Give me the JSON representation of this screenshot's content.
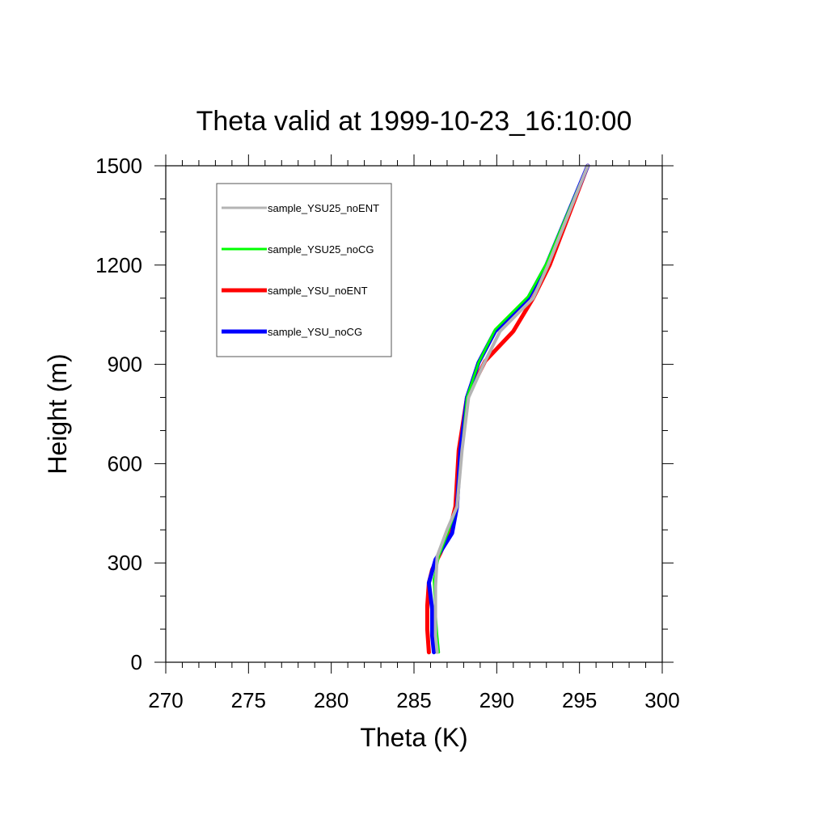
{
  "chart_data": {
    "type": "line",
    "title": "Theta valid at 1999-10-23_16:10:00",
    "xlabel": "Theta (K)",
    "ylabel": "Height (m)",
    "xlim": [
      270,
      300
    ],
    "ylim": [
      0,
      1500
    ],
    "xticks": [
      "270",
      "275",
      "280",
      "285",
      "290",
      "295",
      "300"
    ],
    "yticks": [
      "0",
      "300",
      "600",
      "900",
      "1200",
      "1500"
    ],
    "legend_position": "top-left",
    "grid": false,
    "series": [
      {
        "name": "sample_YSU25_noENT",
        "color": "#b4b4b4",
        "x": [
          286.4,
          286.3,
          286.3,
          286.3,
          286.4,
          287.0,
          287.6,
          287.9,
          288.3,
          289.2,
          290.2,
          292.2,
          293.1,
          295.5
        ],
        "y": [
          30,
          80,
          150,
          230,
          320,
          400,
          470,
          640,
          800,
          900,
          1000,
          1100,
          1200,
          1500
        ]
      },
      {
        "name": "sample_YSU25_noCG",
        "color": "#00ff00",
        "x": [
          286.5,
          286.4,
          286.3,
          286.2,
          286.5,
          287.1,
          287.6,
          287.9,
          288.2,
          288.9,
          289.9,
          291.9,
          293.0,
          295.5
        ],
        "y": [
          30,
          80,
          150,
          250,
          320,
          400,
          470,
          640,
          800,
          905,
          1005,
          1105,
          1205,
          1500
        ]
      },
      {
        "name": "sample_YSU_noENT",
        "color": "#ff0000",
        "x": [
          285.9,
          285.8,
          285.8,
          285.9,
          286.1,
          286.6,
          287.1,
          287.5,
          287.7,
          288.2,
          289.3,
          291.0,
          292.2,
          293.2,
          295.5
        ],
        "y": [
          30,
          100,
          170,
          240,
          280,
          330,
          390,
          470,
          640,
          800,
          910,
          1000,
          1100,
          1200,
          1500
        ]
      },
      {
        "name": "sample_YSU_noCG",
        "color": "#0000ff",
        "x": [
          286.2,
          286.1,
          286.1,
          285.9,
          286.3,
          287.3,
          287.6,
          287.8,
          288.2,
          288.9,
          289.9,
          291.9,
          293.0,
          295.5
        ],
        "y": [
          30,
          80,
          160,
          240,
          310,
          390,
          470,
          640,
          800,
          905,
          1000,
          1100,
          1200,
          1500
        ]
      }
    ]
  }
}
